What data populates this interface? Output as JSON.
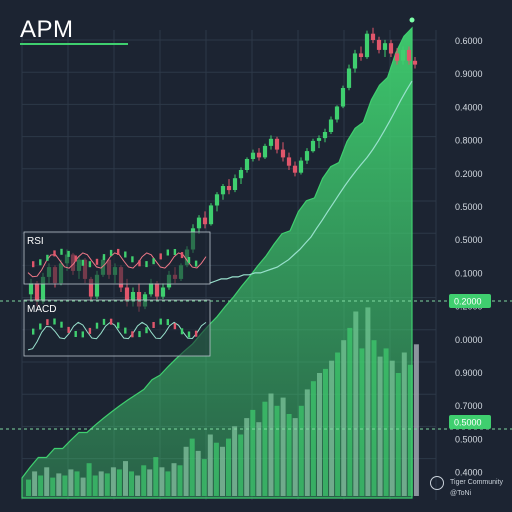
{
  "title": "APM",
  "watermark": {
    "brand": "Tiger Community",
    "user": "@ToNi"
  },
  "colors": {
    "background": "#1c2432",
    "grid": "#2d3848",
    "up": "#3fcf6f",
    "down": "#e0566b",
    "area_green": "#3fcf6f",
    "volume_gray": "#a9b0b8",
    "highlight_label": "#3fcf6f",
    "rsi_line": "#f07888",
    "ma_line": "#98e0cc"
  },
  "chart_data": {
    "type": "line",
    "title": "APM",
    "xlabel": "",
    "ylabel": "",
    "grid": true,
    "y_axis_labels": [
      "0.6000",
      "0.9000",
      "0.4000",
      "0.8000",
      "0.2000",
      "0.5000",
      "0.5000",
      "0.1000",
      "0.2000",
      "0.0000",
      "0.9000",
      "0.7000",
      "0.5000",
      "0.4000"
    ],
    "highlighted_labels": [
      "0.2000",
      "0.5000"
    ],
    "insets": [
      {
        "label": "RSI"
      },
      {
        "label": "MACD"
      }
    ],
    "candles": [
      [
        0.55,
        0.62,
        0.52,
        0.6
      ],
      [
        0.6,
        0.61,
        0.5,
        0.52
      ],
      [
        0.52,
        0.65,
        0.51,
        0.63
      ],
      [
        0.63,
        0.7,
        0.6,
        0.68
      ],
      [
        0.68,
        0.69,
        0.58,
        0.6
      ],
      [
        0.6,
        0.72,
        0.59,
        0.7
      ],
      [
        0.7,
        0.78,
        0.66,
        0.75
      ],
      [
        0.75,
        0.76,
        0.64,
        0.66
      ],
      [
        0.66,
        0.74,
        0.62,
        0.72
      ],
      [
        0.72,
        0.73,
        0.6,
        0.62
      ],
      [
        0.62,
        0.63,
        0.52,
        0.54
      ],
      [
        0.54,
        0.66,
        0.53,
        0.64
      ],
      [
        0.64,
        0.74,
        0.63,
        0.72
      ],
      [
        0.72,
        0.73,
        0.62,
        0.64
      ],
      [
        0.64,
        0.7,
        0.6,
        0.68
      ],
      [
        0.68,
        0.69,
        0.56,
        0.58
      ],
      [
        0.58,
        0.62,
        0.5,
        0.52
      ],
      [
        0.52,
        0.58,
        0.5,
        0.56
      ],
      [
        0.56,
        0.6,
        0.48,
        0.5
      ],
      [
        0.5,
        0.56,
        0.49,
        0.55
      ],
      [
        0.55,
        0.62,
        0.54,
        0.6
      ],
      [
        0.6,
        0.61,
        0.52,
        0.54
      ],
      [
        0.54,
        0.6,
        0.53,
        0.58
      ],
      [
        0.58,
        0.66,
        0.57,
        0.64
      ],
      [
        0.64,
        0.68,
        0.6,
        0.62
      ],
      [
        0.62,
        0.7,
        0.61,
        0.69
      ],
      [
        0.69,
        0.8,
        0.68,
        0.78
      ],
      [
        0.78,
        0.95,
        0.76,
        0.92
      ],
      [
        0.92,
        1.02,
        0.88,
        1.0
      ],
      [
        1.0,
        1.05,
        0.92,
        0.95
      ],
      [
        0.95,
        1.12,
        0.94,
        1.1
      ],
      [
        1.1,
        1.22,
        1.05,
        1.2
      ],
      [
        1.2,
        1.3,
        1.15,
        1.28
      ],
      [
        1.28,
        1.35,
        1.2,
        1.24
      ],
      [
        1.24,
        1.4,
        1.22,
        1.36
      ],
      [
        1.36,
        1.48,
        1.3,
        1.45
      ],
      [
        1.45,
        1.6,
        1.42,
        1.58
      ],
      [
        1.58,
        1.7,
        1.55,
        1.66
      ],
      [
        1.66,
        1.72,
        1.56,
        1.6
      ],
      [
        1.6,
        1.78,
        1.58,
        1.75
      ],
      [
        1.75,
        1.9,
        1.7,
        1.85
      ],
      [
        1.85,
        1.88,
        1.65,
        1.7
      ],
      [
        1.7,
        1.8,
        1.55,
        1.6
      ],
      [
        1.6,
        1.66,
        1.45,
        1.5
      ],
      [
        1.5,
        1.55,
        1.38,
        1.42
      ],
      [
        1.42,
        1.6,
        1.4,
        1.56
      ],
      [
        1.56,
        1.72,
        1.52,
        1.68
      ],
      [
        1.68,
        1.85,
        1.66,
        1.82
      ],
      [
        1.82,
        1.9,
        1.72,
        1.86
      ],
      [
        1.86,
        2.0,
        1.8,
        1.95
      ],
      [
        1.95,
        2.2,
        1.92,
        2.15
      ],
      [
        2.15,
        2.4,
        2.1,
        2.38
      ],
      [
        2.38,
        2.8,
        2.35,
        2.75
      ],
      [
        2.75,
        3.3,
        2.7,
        3.2
      ],
      [
        3.2,
        3.7,
        3.1,
        3.6
      ],
      [
        3.6,
        3.8,
        3.4,
        3.5
      ],
      [
        3.5,
        4.3,
        3.45,
        4.2
      ],
      [
        4.2,
        4.4,
        3.9,
        4.0
      ],
      [
        4.0,
        4.1,
        3.6,
        3.7
      ],
      [
        3.7,
        4.0,
        3.5,
        3.9
      ],
      [
        3.9,
        4.0,
        3.5,
        3.6
      ],
      [
        3.6,
        3.75,
        3.3,
        3.4
      ],
      [
        3.4,
        3.8,
        3.3,
        3.7
      ],
      [
        3.7,
        3.8,
        3.3,
        3.4
      ],
      [
        3.4,
        3.5,
        3.2,
        3.3
      ]
    ],
    "volume": [
      8,
      12,
      10,
      14,
      9,
      11,
      10,
      13,
      12,
      9,
      16,
      10,
      12,
      11,
      14,
      13,
      17,
      12,
      10,
      15,
      13,
      19,
      14,
      12,
      16,
      15,
      24,
      28,
      22,
      18,
      30,
      26,
      24,
      28,
      34,
      30,
      38,
      42,
      36,
      46,
      50,
      44,
      48,
      40,
      38,
      44,
      52,
      56,
      60,
      62,
      66,
      70,
      76,
      82,
      90,
      72,
      92,
      76,
      68,
      72,
      66,
      60,
      70,
      64,
      74
    ],
    "volume_colors": [
      "g",
      "w",
      "g",
      "w",
      "g",
      "w",
      "g",
      "w",
      "g",
      "w",
      "g",
      "g",
      "w",
      "g",
      "w",
      "g",
      "w",
      "g",
      "w",
      "g",
      "w",
      "g",
      "w",
      "g",
      "w",
      "g",
      "w",
      "g",
      "w",
      "g",
      "w",
      "g",
      "w",
      "g",
      "w",
      "g",
      "w",
      "g",
      "w",
      "g",
      "w",
      "g",
      "w",
      "g",
      "w",
      "g",
      "w",
      "g",
      "w",
      "g",
      "w",
      "g",
      "w",
      "g",
      "w",
      "g",
      "w",
      "g",
      "w",
      "g",
      "w",
      "g",
      "w",
      "g",
      "w"
    ],
    "area_curve": [
      0.1,
      0.11,
      0.12,
      0.12,
      0.13,
      0.13,
      0.14,
      0.15,
      0.15,
      0.16,
      0.17,
      0.18,
      0.19,
      0.2,
      0.21,
      0.22,
      0.24,
      0.25,
      0.27,
      0.29,
      0.31,
      0.33,
      0.36,
      0.39,
      0.42,
      0.46,
      0.5,
      0.55,
      0.6,
      0.66,
      0.72,
      0.8,
      0.88,
      0.97,
      1.07,
      1.18,
      1.3,
      1.44,
      1.6,
      1.78,
      2.0,
      2.25,
      2.55,
      2.9,
      3.3,
      3.8,
      4.4,
      5.1,
      5.9
    ],
    "moving_average": [
      0.6,
      0.61,
      0.62,
      0.62,
      0.63,
      0.63,
      0.64,
      0.64,
      0.65,
      0.65,
      0.66,
      0.67,
      0.68,
      0.7,
      0.72,
      0.75,
      0.78,
      0.82,
      0.86,
      0.92,
      0.98,
      1.05,
      1.12,
      1.2,
      1.28,
      1.36,
      1.44,
      1.52,
      1.6,
      1.7,
      1.82,
      1.96,
      2.12,
      2.3,
      2.5,
      2.7,
      2.9
    ]
  }
}
